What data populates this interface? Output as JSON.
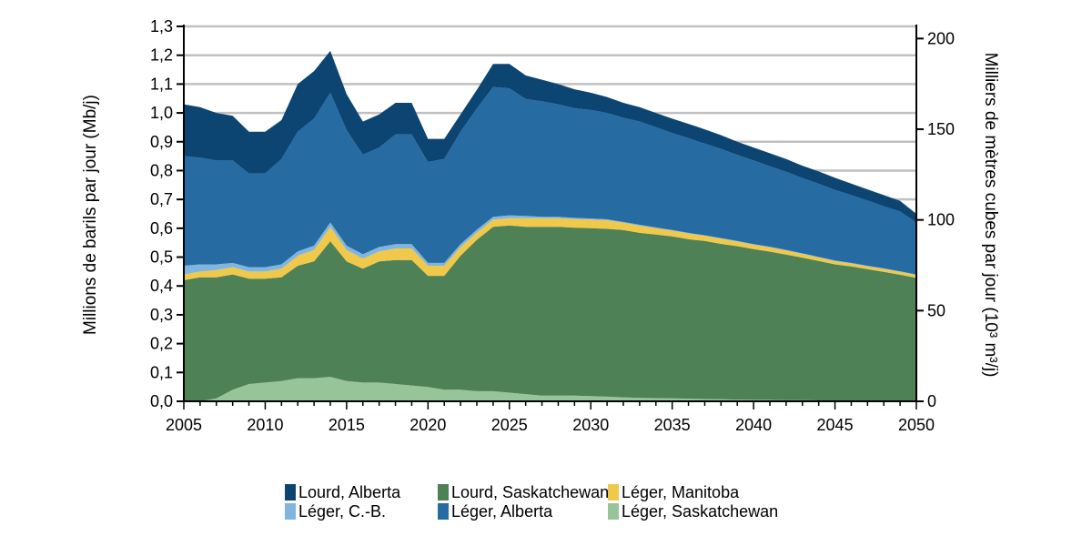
{
  "chart_data": {
    "type": "area",
    "stacked": true,
    "x": [
      2005,
      2006,
      2007,
      2008,
      2009,
      2010,
      2011,
      2012,
      2013,
      2014,
      2015,
      2016,
      2017,
      2018,
      2019,
      2020,
      2021,
      2022,
      2023,
      2024,
      2025,
      2026,
      2027,
      2028,
      2029,
      2030,
      2031,
      2032,
      2033,
      2034,
      2035,
      2036,
      2037,
      2038,
      2039,
      2040,
      2041,
      2042,
      2043,
      2044,
      2045,
      2046,
      2047,
      2048,
      2049,
      2050
    ],
    "series": [
      {
        "name": "Léger, Saskatchewan",
        "color": "#98c49a",
        "values": [
          0.0,
          0.0,
          0.01,
          0.04,
          0.06,
          0.065,
          0.07,
          0.08,
          0.08,
          0.085,
          0.07,
          0.065,
          0.065,
          0.06,
          0.055,
          0.05,
          0.04,
          0.04,
          0.035,
          0.035,
          0.03,
          0.025,
          0.02,
          0.02,
          0.02,
          0.018,
          0.016,
          0.014,
          0.012,
          0.011,
          0.01,
          0.009,
          0.008,
          0.007,
          0.006,
          0.005,
          0.005,
          0.004,
          0.004,
          0.003,
          0.003,
          0.003,
          0.002,
          0.002,
          0.002,
          0.002
        ]
      },
      {
        "name": "Lourd, Saskatchewan",
        "color": "#4e8156",
        "values": [
          0.42,
          0.43,
          0.42,
          0.4,
          0.365,
          0.36,
          0.36,
          0.39,
          0.405,
          0.47,
          0.415,
          0.395,
          0.42,
          0.43,
          0.435,
          0.385,
          0.395,
          0.465,
          0.525,
          0.57,
          0.58,
          0.58,
          0.585,
          0.585,
          0.582,
          0.582,
          0.582,
          0.58,
          0.572,
          0.567,
          0.562,
          0.553,
          0.548,
          0.539,
          0.532,
          0.523,
          0.514,
          0.505,
          0.494,
          0.484,
          0.472,
          0.465,
          0.456,
          0.447,
          0.437,
          0.426
        ]
      },
      {
        "name": "Léger, Manitoba",
        "color": "#f0c84a",
        "values": [
          0.02,
          0.02,
          0.025,
          0.025,
          0.025,
          0.025,
          0.03,
          0.035,
          0.04,
          0.05,
          0.04,
          0.035,
          0.035,
          0.04,
          0.04,
          0.035,
          0.035,
          0.03,
          0.025,
          0.025,
          0.025,
          0.03,
          0.03,
          0.03,
          0.03,
          0.03,
          0.03,
          0.025,
          0.025,
          0.022,
          0.02,
          0.02,
          0.018,
          0.018,
          0.016,
          0.015,
          0.015,
          0.014,
          0.013,
          0.012,
          0.011,
          0.01,
          0.01,
          0.01,
          0.01,
          0.01
        ]
      },
      {
        "name": "Léger, C.-B.",
        "color": "#7fb5de",
        "values": [
          0.03,
          0.025,
          0.02,
          0.015,
          0.015,
          0.015,
          0.015,
          0.015,
          0.015,
          0.015,
          0.015,
          0.015,
          0.015,
          0.015,
          0.015,
          0.01,
          0.01,
          0.01,
          0.01,
          0.01,
          0.01,
          0.008,
          0.005,
          0.005,
          0.004,
          0.004,
          0.003,
          0.003,
          0.003,
          0.003,
          0.002,
          0.002,
          0.002,
          0.002,
          0.002,
          0.002,
          0.002,
          0.002,
          0.002,
          0.002,
          0.002,
          0.002,
          0.002,
          0.002,
          0.002,
          0.002
        ]
      },
      {
        "name": "Léger, Alberta",
        "color": "#266ba1",
        "values": [
          0.38,
          0.37,
          0.36,
          0.355,
          0.325,
          0.325,
          0.365,
          0.415,
          0.44,
          0.45,
          0.4,
          0.345,
          0.345,
          0.38,
          0.38,
          0.35,
          0.36,
          0.39,
          0.42,
          0.45,
          0.44,
          0.405,
          0.4,
          0.39,
          0.38,
          0.376,
          0.369,
          0.361,
          0.358,
          0.347,
          0.336,
          0.328,
          0.318,
          0.309,
          0.298,
          0.29,
          0.279,
          0.271,
          0.261,
          0.253,
          0.245,
          0.235,
          0.226,
          0.215,
          0.207,
          0.18
        ]
      },
      {
        "name": "Lourd, Alberta",
        "color": "#0d4572",
        "values": [
          0.18,
          0.175,
          0.165,
          0.155,
          0.145,
          0.145,
          0.135,
          0.165,
          0.165,
          0.145,
          0.125,
          0.115,
          0.115,
          0.11,
          0.11,
          0.08,
          0.07,
          0.06,
          0.065,
          0.08,
          0.085,
          0.082,
          0.075,
          0.07,
          0.066,
          0.06,
          0.055,
          0.052,
          0.05,
          0.05,
          0.05,
          0.05,
          0.049,
          0.048,
          0.046,
          0.045,
          0.045,
          0.044,
          0.043,
          0.043,
          0.042,
          0.04,
          0.039,
          0.039,
          0.037,
          0.03
        ]
      }
    ],
    "ylabel": "Millions de barils par jour (Mb/j)",
    "ylabel_right": "Milliers de mètres cubes par jour (10³ m³/j)",
    "ylim": [
      0,
      1.3
    ],
    "yticks": [
      "0,0",
      "0,1",
      "0,2",
      "0,3",
      "0,4",
      "0,5",
      "0,6",
      "0,7",
      "0,8",
      "0,9",
      "1,0",
      "1,1",
      "1,2",
      "1,3"
    ],
    "ylim_right": [
      0,
      206.7
    ],
    "yticks_right": [
      "0",
      "50",
      "100",
      "150",
      "200"
    ],
    "xlim": [
      2005,
      2050
    ],
    "xticks": [
      "2005",
      "2010",
      "2015",
      "2020",
      "2025",
      "2030",
      "2035",
      "2040",
      "2045",
      "2050"
    ],
    "grid": true,
    "legend_position": "bottom",
    "legend_order": [
      "Lourd, Alberta",
      "Léger, C.-B.",
      "Lourd, Saskatchewan",
      "Léger, Alberta",
      "Léger, Manitoba",
      "Léger, Saskatchewan"
    ]
  }
}
